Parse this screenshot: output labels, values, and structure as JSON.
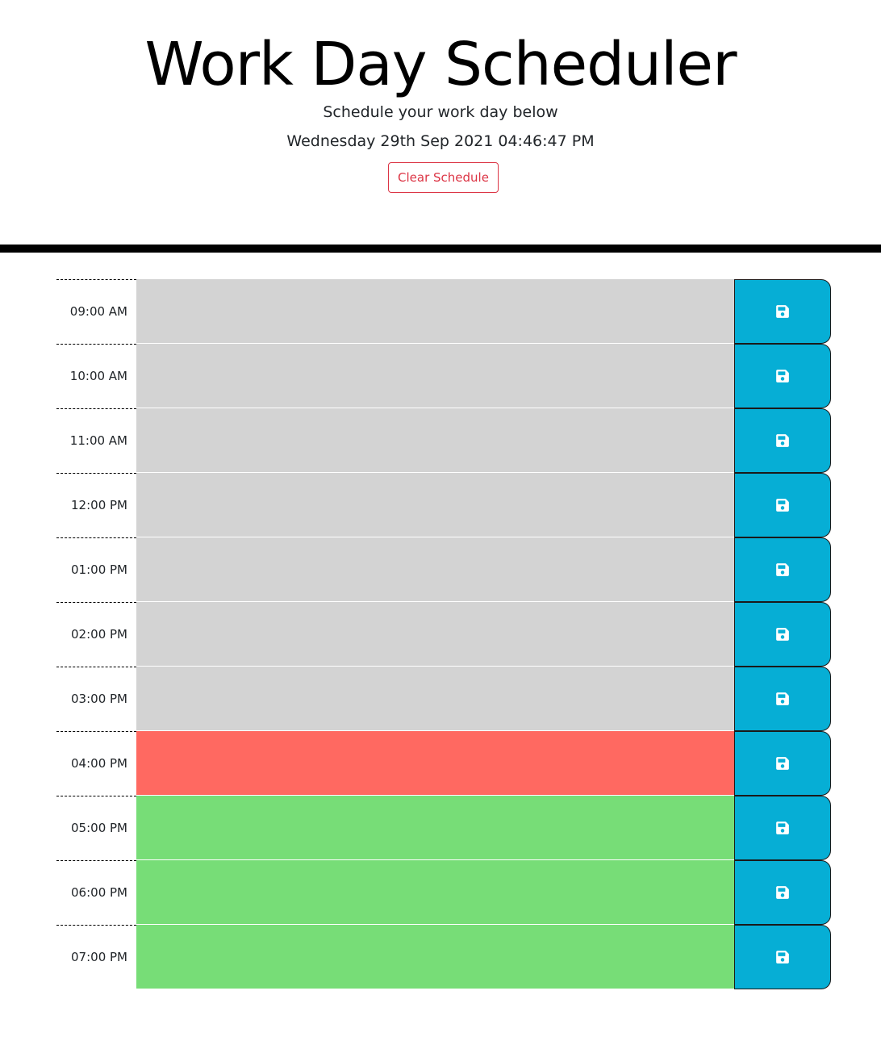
{
  "header": {
    "title": "Work Day Scheduler",
    "subtitle": "Schedule your work day below",
    "current_day": "Wednesday 29th Sep 2021 04:46:47 PM",
    "clear_label": "Clear Schedule"
  },
  "colors": {
    "past": "#d3d3d3",
    "present": "#ff6961",
    "future": "#77dd77",
    "save": "#06aed5",
    "clear": "#dc3545"
  },
  "save_icon": "floppy-disk-icon",
  "time_blocks": [
    {
      "hour": "09:00 AM",
      "state": "past",
      "text": ""
    },
    {
      "hour": "10:00 AM",
      "state": "past",
      "text": ""
    },
    {
      "hour": "11:00 AM",
      "state": "past",
      "text": ""
    },
    {
      "hour": "12:00 PM",
      "state": "past",
      "text": ""
    },
    {
      "hour": "01:00 PM",
      "state": "past",
      "text": ""
    },
    {
      "hour": "02:00 PM",
      "state": "past",
      "text": ""
    },
    {
      "hour": "03:00 PM",
      "state": "past",
      "text": ""
    },
    {
      "hour": "04:00 PM",
      "state": "present",
      "text": ""
    },
    {
      "hour": "05:00 PM",
      "state": "future",
      "text": ""
    },
    {
      "hour": "06:00 PM",
      "state": "future",
      "text": ""
    },
    {
      "hour": "07:00 PM",
      "state": "future",
      "text": ""
    }
  ]
}
